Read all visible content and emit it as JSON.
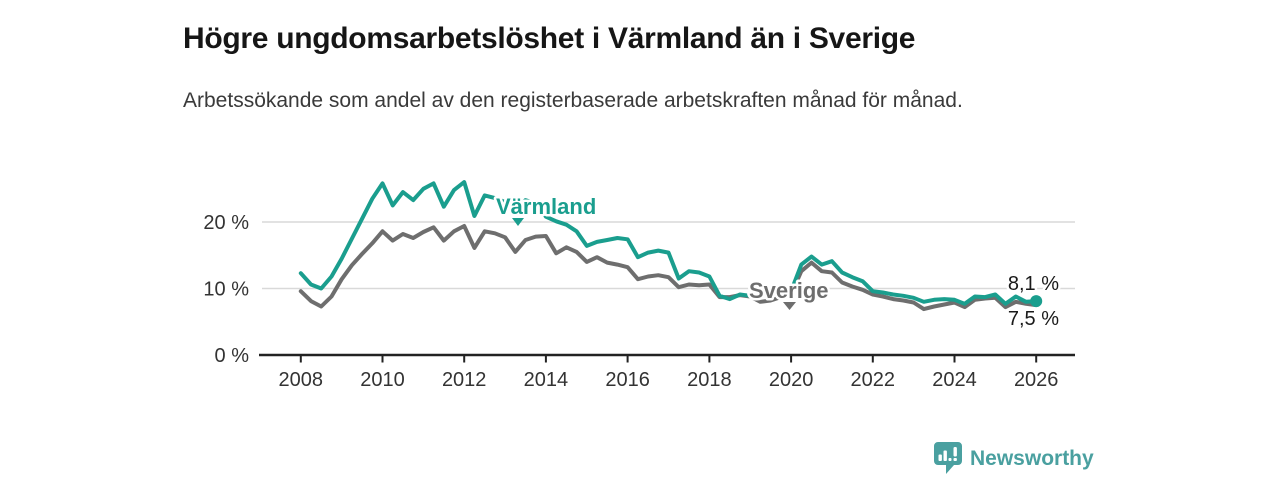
{
  "header": {
    "title": "Högre ungdomsarbetslöshet i Värmland än i Sverige",
    "subtitle": "Arbetssökande som andel av den registerbaserade arbetskraften månad för månad."
  },
  "chart_data": {
    "type": "line",
    "title": "Högre ungdomsarbetslöshet i Värmland än i Sverige",
    "subtitle": "Arbetssökande som andel av den registerbaserade arbetskraften månad för månad.",
    "x_start": 2008.0,
    "x_step": 0.25,
    "xlim": [
      2007.05,
      2026.95
    ],
    "ylim": [
      0,
      27.5
    ],
    "x_ticks": [
      2008,
      2010,
      2012,
      2014,
      2016,
      2018,
      2020,
      2022,
      2024,
      2026
    ],
    "y_ticks": [
      0,
      10,
      20
    ],
    "y_tick_suffix": " %",
    "grid": "horizontal",
    "legend_position": "inline-labels",
    "series": [
      {
        "name": "Värmland",
        "color": "#1a9e8e",
        "end_label": "8,1 %",
        "end_value": 8.1,
        "values": [
          12.3,
          10.6,
          10.0,
          11.8,
          14.5,
          17.5,
          20.5,
          23.5,
          25.8,
          22.5,
          24.5,
          23.3,
          25.0,
          25.8,
          22.3,
          24.8,
          26.0,
          20.9,
          24.0,
          23.6,
          23.0,
          21.5,
          23.3,
          22.8,
          20.8,
          20.1,
          19.6,
          18.6,
          16.4,
          17.0,
          17.3,
          17.6,
          17.4,
          14.7,
          15.4,
          15.7,
          15.4,
          11.5,
          12.6,
          12.4,
          11.8,
          8.9,
          8.4,
          9.1,
          8.9,
          9.2,
          9.5,
          9.3,
          9.6,
          13.6,
          14.8,
          13.6,
          14.1,
          12.4,
          11.7,
          11.1,
          9.6,
          9.4,
          9.1,
          8.9,
          8.6,
          8.0,
          8.3,
          8.4,
          8.3,
          7.7,
          8.8,
          8.7,
          9.1,
          7.7,
          8.8,
          8.0,
          8.1
        ]
      },
      {
        "name": "Sverige",
        "color": "#6e6e6e",
        "end_label": "7,5 %",
        "end_value": 7.5,
        "values": [
          9.6,
          8.1,
          7.3,
          8.8,
          11.4,
          13.5,
          15.2,
          16.8,
          18.6,
          17.2,
          18.2,
          17.6,
          18.5,
          19.2,
          17.2,
          18.6,
          19.4,
          16.1,
          18.6,
          18.3,
          17.7,
          15.5,
          17.3,
          17.8,
          17.9,
          15.3,
          16.2,
          15.5,
          14.0,
          14.7,
          13.9,
          13.6,
          13.2,
          11.4,
          11.8,
          12.0,
          11.7,
          10.2,
          10.6,
          10.5,
          10.6,
          8.7,
          8.7,
          9.0,
          8.8,
          8.0,
          8.2,
          8.7,
          9.1,
          12.6,
          13.9,
          12.6,
          12.4,
          10.9,
          10.3,
          9.8,
          9.1,
          8.8,
          8.4,
          8.2,
          7.9,
          6.9,
          7.3,
          7.6,
          7.9,
          7.2,
          8.3,
          8.5,
          8.6,
          7.2,
          8.0,
          7.7,
          7.5
        ]
      }
    ]
  },
  "colors": {
    "accent_teal": "#1a9e8e",
    "series_gray": "#6e6e6e",
    "gridline": "#d9d9d9",
    "axis": "#222222",
    "tick_label": "#333333",
    "annotation": "#1a1a1a",
    "brand": "#4aa0a0"
  },
  "footer": {
    "brand": "Newsworthy"
  }
}
